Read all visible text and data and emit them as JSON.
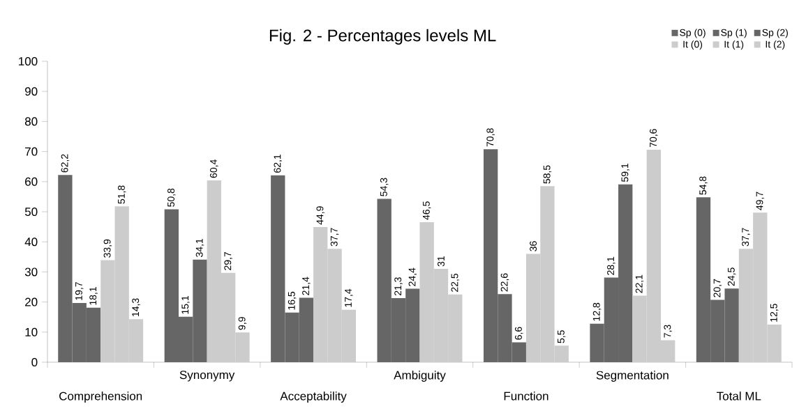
{
  "chart_data": {
    "type": "bar",
    "title": "Fig. 2 - Percentages levels ML",
    "categories": [
      "Comprehension",
      "Synonymy",
      "Acceptability",
      "Ambiguity",
      "Function",
      "Segmentation",
      "Total ML"
    ],
    "series": [
      {
        "name": "Sp (0)",
        "color": "#666666",
        "values": [
          62.2,
          50.8,
          62.1,
          54.3,
          70.8,
          12.8,
          54.8
        ],
        "value_labels": [
          "62,2",
          "50,8",
          "62,1",
          "54,3",
          "70,8",
          "12,8",
          "54,8"
        ]
      },
      {
        "name": "Sp (1)",
        "color": "#666666",
        "values": [
          19.7,
          15.1,
          16.5,
          21.3,
          22.6,
          28.1,
          20.7
        ],
        "value_labels": [
          "19,7",
          "15,1",
          "16,5",
          "21,3",
          "22,6",
          "28,1",
          "20,7"
        ]
      },
      {
        "name": "Sp (2)",
        "color": "#666666",
        "values": [
          18.1,
          34.1,
          21.4,
          24.4,
          6.6,
          59.1,
          24.5
        ],
        "value_labels": [
          "18,1",
          "34,1",
          "21,4",
          "24,4",
          "6,6",
          "59,1",
          "24,5"
        ]
      },
      {
        "name": "It (0)",
        "color": "#cccccc",
        "values": [
          33.9,
          60.4,
          44.9,
          46.5,
          36,
          22.1,
          37.7
        ],
        "value_labels": [
          "33,9",
          "60,4",
          "44,9",
          "46,5",
          "36",
          "22,1",
          "37,7"
        ]
      },
      {
        "name": "It (1)",
        "color": "#cccccc",
        "values": [
          51.8,
          29.7,
          37.7,
          31,
          58.5,
          70.6,
          49.7
        ],
        "value_labels": [
          "51,8",
          "29,7",
          "37,7",
          "31",
          "58,5",
          "70,6",
          "49,7"
        ]
      },
      {
        "name": "It (2)",
        "color": "#cccccc",
        "values": [
          14.3,
          9.9,
          17.4,
          22.5,
          5.5,
          7.3,
          12.5
        ],
        "value_labels": [
          "14,3",
          "9,9",
          "17,4",
          "22,5",
          "5,5",
          "7,3",
          "12,5"
        ]
      }
    ],
    "ylim": [
      0,
      100
    ],
    "yticks": [
      0,
      10,
      20,
      30,
      40,
      50,
      60,
      70,
      80,
      90,
      100
    ],
    "grid": false,
    "legend": "top right"
  }
}
